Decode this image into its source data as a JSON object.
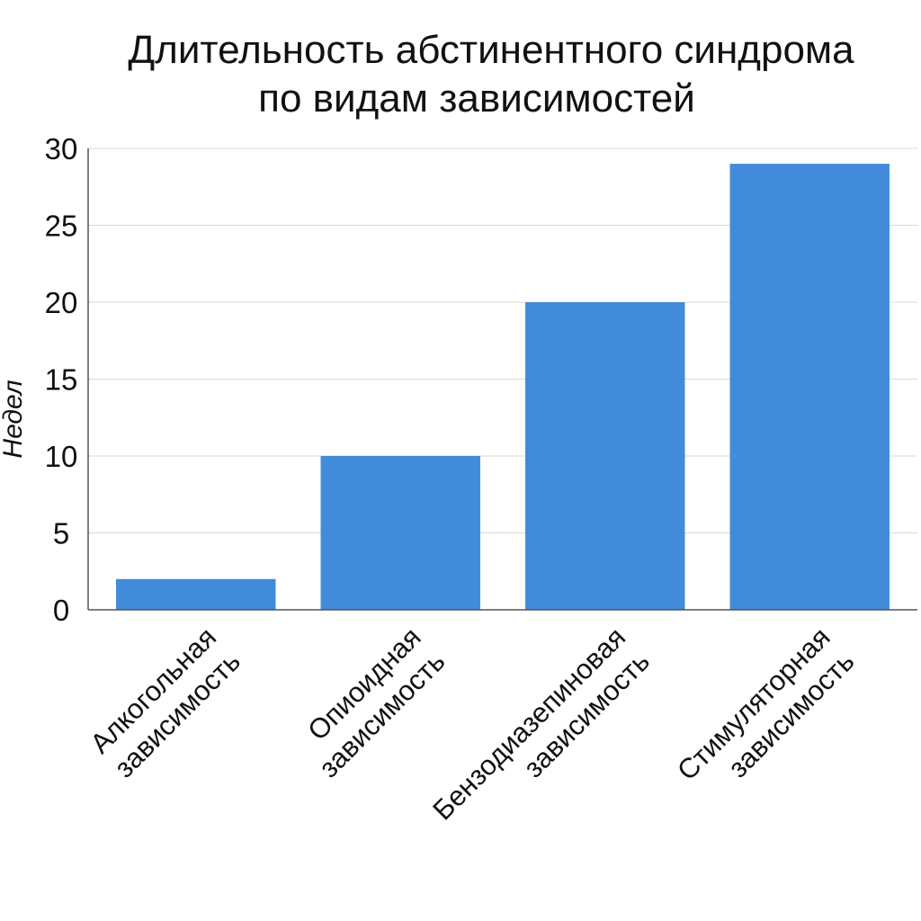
{
  "chart_data": {
    "type": "bar",
    "title_lines": [
      "Длительность абстинентного синдрома",
      "по видам зависимостей"
    ],
    "xlabel": "",
    "ylabel": "Недел",
    "categories": [
      [
        "Алкогольная",
        "зависимость"
      ],
      [
        "Опиоидная",
        "зависимость"
      ],
      [
        "Бензодиазепиновая",
        "зависимость"
      ],
      [
        "Стимуляторная",
        "зависимость"
      ]
    ],
    "values": [
      2,
      10,
      20,
      29
    ],
    "ylim": [
      0,
      30
    ],
    "yticks": [
      "0",
      "5",
      "10",
      "15",
      "20",
      "25",
      "30"
    ],
    "grid": true,
    "legend": "none",
    "bar_color": "#428bdb"
  }
}
